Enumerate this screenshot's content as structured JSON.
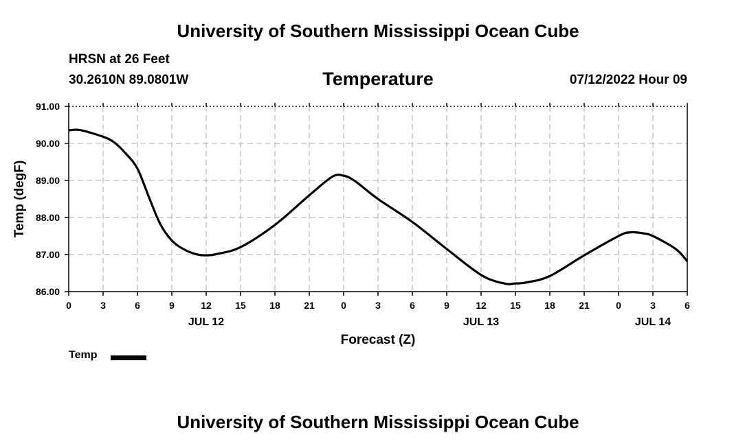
{
  "header": {
    "title": "University of Southern Mississippi Ocean Cube",
    "station": "HRSN at 26 Feet",
    "coords": "30.2610N  89.0801W",
    "variable": "Temperature",
    "timestamp": "07/12/2022 Hour 09"
  },
  "footer": {
    "title": "University of Southern Mississippi Ocean Cube"
  },
  "legend": {
    "label": "Temp"
  },
  "chart_data": {
    "type": "line",
    "title": "Temperature",
    "xlabel": "Forecast (Z)",
    "ylabel": "Temp (degF)",
    "ylim": [
      86.0,
      91.0
    ],
    "xlim_hours": [
      0,
      54
    ],
    "grid": true,
    "legend_position": "bottom-left",
    "y_ticks": [
      "86.00",
      "87.00",
      "88.00",
      "89.00",
      "90.00",
      "91.00"
    ],
    "x_tick_labels": [
      "0",
      "3",
      "6",
      "9",
      "12",
      "15",
      "18",
      "21",
      "0",
      "3",
      "6",
      "9",
      "12",
      "15",
      "18",
      "21",
      "0",
      "3",
      "6"
    ],
    "date_labels": [
      {
        "label": "JUL 12",
        "hour": 12
      },
      {
        "label": "JUL 13",
        "hour": 36
      },
      {
        "label": "JUL 14",
        "hour": 51
      }
    ],
    "line_color": "#000000",
    "series": [
      {
        "name": "Temp",
        "x": [
          0,
          1,
          3,
          4,
          5,
          6,
          7,
          8,
          9,
          10,
          11,
          12,
          13,
          15,
          18,
          21,
          23,
          24,
          25,
          27,
          30,
          33,
          36,
          38,
          39,
          40,
          42,
          45,
          48,
          49,
          50,
          51,
          53,
          54
        ],
        "y": [
          90.35,
          90.36,
          90.18,
          90.02,
          89.72,
          89.32,
          88.55,
          87.82,
          87.38,
          87.15,
          87.02,
          86.98,
          87.02,
          87.2,
          87.8,
          88.6,
          89.1,
          89.13,
          88.98,
          88.5,
          87.88,
          87.15,
          86.45,
          86.22,
          86.22,
          86.25,
          86.42,
          86.98,
          87.5,
          87.6,
          87.58,
          87.5,
          87.15,
          86.82
        ]
      }
    ]
  }
}
